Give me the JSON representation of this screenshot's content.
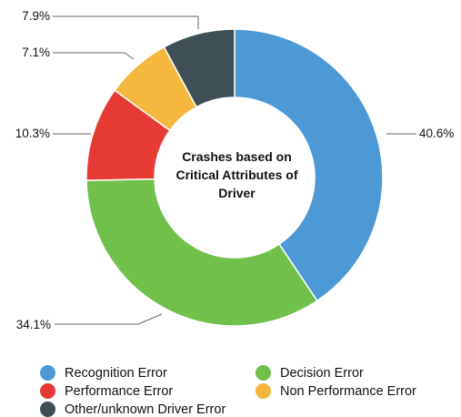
{
  "chart_data": {
    "type": "pie",
    "variant": "donut",
    "title": "Crashes based on Critical Attributes of Driver",
    "title_lines": [
      "Crashes based on",
      "Critical Attributes of",
      "Driver"
    ],
    "slices": [
      {
        "name": "Recognition Error",
        "value": 40.6,
        "label": "40.6%",
        "color": "#4d99d6"
      },
      {
        "name": "Decision Error",
        "value": 34.1,
        "label": "34.1%",
        "color": "#71c04b"
      },
      {
        "name": "Performance Error",
        "value": 10.3,
        "label": "10.3%",
        "color": "#e63a34"
      },
      {
        "name": "Non Performance Error",
        "value": 7.1,
        "label": "7.1%",
        "color": "#f5b73d"
      },
      {
        "name": "Other/unknown Driver Error",
        "value": 7.9,
        "label": "7.9%",
        "color": "#3e5055"
      }
    ],
    "legend_placement": "bottom"
  },
  "legend": {
    "items": [
      {
        "label": "Recognition Error",
        "color": "#4d99d6"
      },
      {
        "label": "Decision Error",
        "color": "#71c04b"
      },
      {
        "label": "Performance Error",
        "color": "#e63a34"
      },
      {
        "label": "Non Performance Error",
        "color": "#f5b73d"
      },
      {
        "label": "Other/unknown Driver Error",
        "color": "#3e5055"
      }
    ]
  }
}
